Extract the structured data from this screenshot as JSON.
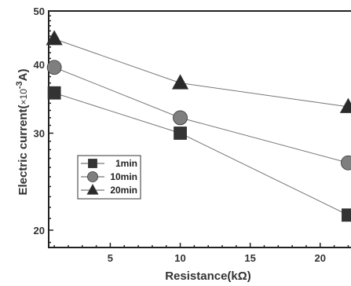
{
  "chart_data": {
    "type": "line",
    "xlabel": "Resistance(kΩ)",
    "ylabel_main": "Electric current(",
    "ylabel_sup": "-3",
    "ylabel_end": "A)",
    "ylabel_times": "×10",
    "xlim": [
      0.6,
      22.2
    ],
    "ylim": [
      18.6,
      50
    ],
    "yscale": "log",
    "x_ticks": [
      5,
      10,
      15,
      20
    ],
    "x_tick_labels": [
      "5",
      "10",
      "15",
      "20"
    ],
    "y_ticks": [
      20,
      30,
      40,
      50
    ],
    "y_tick_labels": [
      "20",
      "30",
      "40",
      "50"
    ],
    "legend_position": "lower-left",
    "series": [
      {
        "name": "1min",
        "marker": "square",
        "color": "#333333",
        "x": [
          1,
          10,
          22
        ],
        "y": [
          35.5,
          30,
          21.3
        ]
      },
      {
        "name": "10min",
        "marker": "circle",
        "color": "#7f7f7f",
        "x": [
          1,
          10,
          22
        ],
        "y": [
          39.5,
          32,
          26.5
        ]
      },
      {
        "name": "20min",
        "marker": "triangle",
        "color": "#2a2a2a",
        "x": [
          1,
          10,
          22
        ],
        "y": [
          44.5,
          37,
          33.5
        ]
      }
    ]
  }
}
